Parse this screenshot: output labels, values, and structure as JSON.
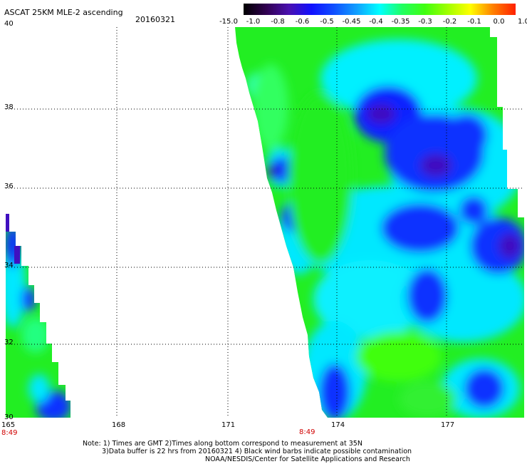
{
  "header": {
    "title": "ASCAT 25KM MLE-2 ascending",
    "date": "20160321"
  },
  "colorbar": {
    "labels": [
      "-15.0",
      "-1.0",
      "-0.8",
      "-0.6",
      "-0.5",
      "-0.45",
      "-0.4",
      "-0.35",
      "-0.3",
      "-0.2",
      "-0.1",
      "0.0",
      "1.0"
    ],
    "colors": [
      "#000000",
      "#300050",
      "#4a10b0",
      "#1010ff",
      "#1050ff",
      "#10a0ff",
      "#00ffff",
      "#20ff60",
      "#40ff10",
      "#a0ff00",
      "#ffff00",
      "#ff8000",
      "#ff2000"
    ]
  },
  "axes": {
    "lat_labels": [
      "40",
      "38",
      "36",
      "34",
      "32",
      "30"
    ],
    "lon_labels": [
      "165",
      "168",
      "171",
      "174",
      "177"
    ]
  },
  "times": [
    "8:49",
    "8:49"
  ],
  "notes": [
    "Note: 1) Times are GMT 2)Times along bottom correspond to measurement at 35N",
    "3)Data buffer is 22 hrs from 20160321 4) Black wind barbs indicate possible contamination",
    "NOAA/NESDIS/Center for Satellite Applications and Research"
  ]
}
